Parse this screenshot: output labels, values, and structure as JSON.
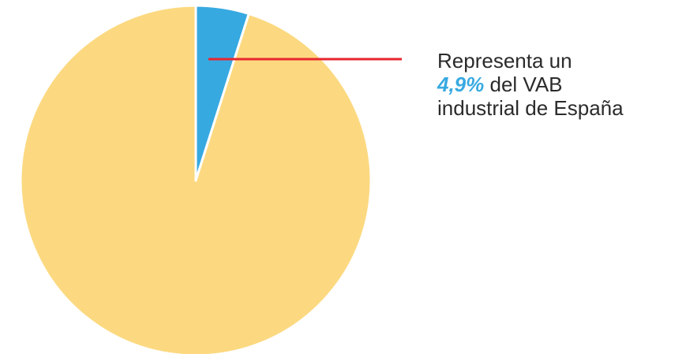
{
  "chart_data": {
    "type": "pie",
    "slices": [
      {
        "value": 4.9,
        "color": "#37a9e1"
      },
      {
        "value": 95.1,
        "color": "#fcd980"
      }
    ],
    "annotation": {
      "line1": "Representa un",
      "highlight": "4,9%",
      "line2_rest": " del VAB",
      "line3": "industrial de España"
    },
    "colors": {
      "highlight": "#37a9e1",
      "callout_line": "#e8262e",
      "separator": "#ffffff"
    }
  }
}
